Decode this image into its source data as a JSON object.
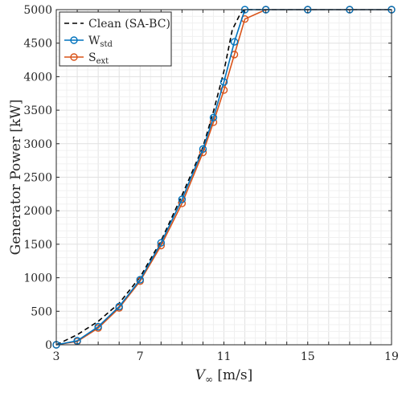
{
  "chart_data": {
    "type": "line",
    "title": "",
    "xlabel": {
      "symbol": "V",
      "subscript": "∞",
      "unit": "[m/s]"
    },
    "ylabel": "Generator Power [kW]",
    "xlim": [
      3,
      19
    ],
    "ylim": [
      0,
      5000
    ],
    "xticks": [
      3,
      7,
      11,
      15,
      19
    ],
    "xtick_labels": [
      "3",
      "7",
      "11",
      "15",
      "19"
    ],
    "yticks": [
      0,
      500,
      1000,
      1500,
      2000,
      2500,
      3000,
      3500,
      4000,
      4500,
      5000
    ],
    "ytick_labels": [
      "0",
      "500",
      "1000",
      "1500",
      "2000",
      "2500",
      "3000",
      "3500",
      "4000",
      "4500",
      "5000"
    ],
    "grid": true,
    "legend_position": "top-left",
    "series": [
      {
        "name": "Clean (SA-BC)",
        "style": "dashed",
        "marker": "none",
        "color": "#000000",
        "x": [
          3,
          4,
          5,
          6,
          7,
          8,
          9,
          10,
          10.5,
          11,
          11.4,
          11.8,
          12,
          13,
          15,
          17,
          19
        ],
        "y": [
          0,
          150,
          350,
          620,
          1010,
          1550,
          2230,
          2950,
          3480,
          4080,
          4700,
          4950,
          5000,
          5000,
          5000,
          5000,
          5000
        ]
      },
      {
        "name": "W",
        "name_sub": "std",
        "style": "solid",
        "marker": "circle",
        "color": "#0072BD",
        "x": [
          3,
          4,
          5,
          6,
          7,
          8,
          9,
          10,
          10.5,
          11,
          11.5,
          12,
          13,
          15,
          17,
          19
        ],
        "y": [
          0,
          60,
          270,
          570,
          970,
          1520,
          2170,
          2920,
          3390,
          3920,
          4520,
          5000,
          5000,
          5000,
          5000,
          5000
        ]
      },
      {
        "name": "S",
        "name_sub": "ext",
        "style": "solid",
        "marker": "circle",
        "color": "#D95319",
        "x": [
          3,
          4,
          5,
          6,
          7,
          8,
          9,
          10,
          10.5,
          11,
          11.5,
          12,
          13,
          15,
          17,
          19
        ],
        "y": [
          0,
          50,
          250,
          550,
          950,
          1480,
          2110,
          2870,
          3320,
          3800,
          4330,
          4860,
          5000,
          5000,
          5000,
          5000
        ]
      }
    ]
  }
}
